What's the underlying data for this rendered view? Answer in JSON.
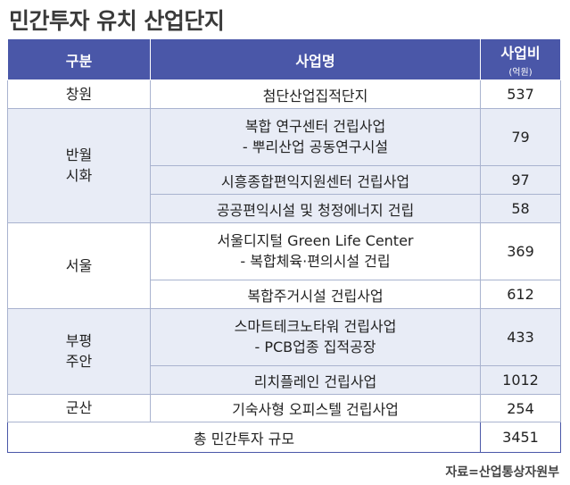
{
  "title": "민간투자 유치 산업단지",
  "header": {
    "col1": "구분",
    "col2": "사업명",
    "col3": "사업비",
    "col3_unit": "(억원)"
  },
  "rows": {
    "changwon": {
      "region": "창원",
      "p1": "첨단산업집적단지",
      "v1": "537"
    },
    "banwol": {
      "region_line1": "반월",
      "region_line2": "시화",
      "p1_line1": "복합 연구센터 건립사업",
      "p1_line2": "- 뿌리산업 공동연구시설",
      "v1": "79",
      "p2": "시흥종합편익지원센터 건립사업",
      "v2": "97",
      "p3": "공공편익시설 및 청정에너지 건립",
      "v3": "58"
    },
    "seoul": {
      "region": "서울",
      "p1_line1": "서울디지털 Green Life Center",
      "p1_line2": "- 복합체육·편의시설 건립",
      "v1": "369",
      "p2": "복합주거시설 건립사업",
      "v2": "612"
    },
    "bupyeong": {
      "region_line1": "부평",
      "region_line2": "주안",
      "p1_line1": "스마트테크노타워 건립사업",
      "p1_line2": "- PCB업종 집적공장",
      "v1": "433",
      "p2": "리치플레인 건립사업",
      "v2": "1012"
    },
    "gunsan": {
      "region": "군산",
      "p1": "기숙사형 오피스텔 건립사업",
      "v1": "254"
    }
  },
  "total": {
    "label": "총 민간투자 규모",
    "value": "3451"
  },
  "source": "자료=산업통상자원부",
  "colors": {
    "header_bg": "#4a57a8",
    "shade_bg": "#e8ecf6",
    "border": "#a9b3cf"
  }
}
